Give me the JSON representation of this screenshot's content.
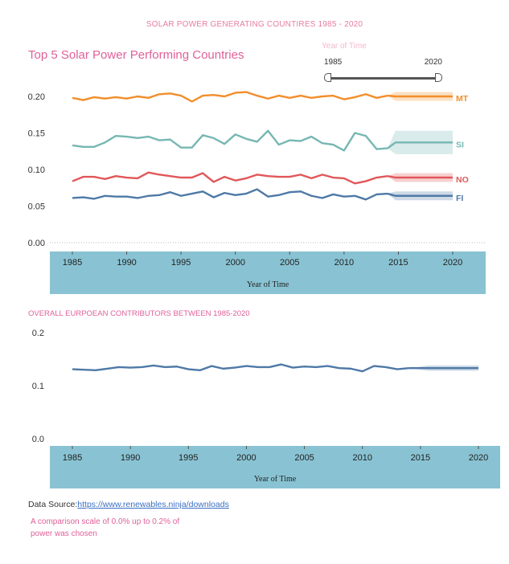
{
  "dashboard_title": "SOLAR POWER GENERATING COUNTIRES 1985 - 2020",
  "filter": {
    "label": "Year of Time",
    "min": "1985",
    "max": "2020"
  },
  "chart_data": [
    {
      "type": "line",
      "title": "Top 5 Solar Power Performing Countries",
      "xlabel": "Year of Time",
      "ylabel": "",
      "x": [
        1985,
        1986,
        1987,
        1988,
        1989,
        1990,
        1991,
        1992,
        1993,
        1994,
        1995,
        1996,
        1997,
        1998,
        1999,
        2000,
        2001,
        2002,
        2003,
        2004,
        2005,
        2006,
        2007,
        2008,
        2009,
        2010,
        2011,
        2012,
        2013,
        2014
      ],
      "xlim": [
        1985,
        2020
      ],
      "ylim": [
        0,
        0.2
      ],
      "yticks": [
        "0.00",
        "0.05",
        "0.10",
        "0.15",
        "0.20"
      ],
      "xticks": [
        "1985",
        "1990",
        "1995",
        "2000",
        "2005",
        "2010",
        "2015",
        "2020"
      ],
      "forecast_x": [
        2014,
        2020
      ],
      "series": [
        {
          "name": "MT",
          "color": "#f28e2b",
          "values": [
            0.198,
            0.195,
            0.199,
            0.197,
            0.199,
            0.197,
            0.2,
            0.198,
            0.203,
            0.204,
            0.201,
            0.193,
            0.201,
            0.202,
            0.2,
            0.205,
            0.206,
            0.201,
            0.197,
            0.201,
            0.198,
            0.201,
            0.198,
            0.2,
            0.201,
            0.196,
            0.199,
            0.203,
            0.198,
            0.201
          ],
          "forecast": 0.2,
          "band": [
            0.194,
            0.206
          ]
        },
        {
          "name": "SI",
          "color": "#76b7b2",
          "values": [
            0.133,
            0.131,
            0.131,
            0.137,
            0.146,
            0.145,
            0.143,
            0.145,
            0.14,
            0.141,
            0.13,
            0.13,
            0.147,
            0.143,
            0.135,
            0.148,
            0.142,
            0.138,
            0.153,
            0.134,
            0.14,
            0.139,
            0.145,
            0.136,
            0.134,
            0.126,
            0.15,
            0.146,
            0.128,
            0.129
          ],
          "forecast": 0.137,
          "band": [
            0.121,
            0.153
          ]
        },
        {
          "name": "NO",
          "color": "#e15759",
          "values": [
            0.084,
            0.09,
            0.09,
            0.087,
            0.091,
            0.089,
            0.088,
            0.096,
            0.093,
            0.091,
            0.089,
            0.089,
            0.095,
            0.083,
            0.09,
            0.085,
            0.088,
            0.093,
            0.091,
            0.09,
            0.09,
            0.093,
            0.088,
            0.093,
            0.089,
            0.088,
            0.081,
            0.084,
            0.089,
            0.091
          ],
          "forecast": 0.089,
          "band": [
            0.083,
            0.095
          ]
        },
        {
          "name": "FI",
          "color": "#4e79a7",
          "values": [
            0.061,
            0.062,
            0.06,
            0.064,
            0.063,
            0.063,
            0.061,
            0.064,
            0.065,
            0.069,
            0.064,
            0.067,
            0.07,
            0.062,
            0.068,
            0.065,
            0.067,
            0.073,
            0.063,
            0.065,
            0.069,
            0.07,
            0.064,
            0.061,
            0.066,
            0.063,
            0.064,
            0.059,
            0.066,
            0.067
          ],
          "forecast": 0.064,
          "band": [
            0.058,
            0.07
          ]
        }
      ]
    },
    {
      "type": "line",
      "title": "OVERALL EURPOEAN CONTRIBUTORS BETWEEN 1985-2020",
      "xlabel": "Year of Time",
      "ylabel": "",
      "x": [
        1985,
        1986,
        1987,
        1988,
        1989,
        1990,
        1991,
        1992,
        1993,
        1994,
        1995,
        1996,
        1997,
        1998,
        1999,
        2000,
        2001,
        2002,
        2003,
        2004,
        2005,
        2006,
        2007,
        2008,
        2009,
        2010,
        2011,
        2012,
        2013,
        2014
      ],
      "xlim": [
        1985,
        2020
      ],
      "ylim": [
        0,
        0.2
      ],
      "yticks": [
        "0.0",
        "0.1",
        "0.2"
      ],
      "xticks": [
        "1985",
        "1990",
        "1995",
        "2000",
        "2005",
        "2010",
        "2015",
        "2020"
      ],
      "forecast_x": [
        2015,
        2020
      ],
      "series": [
        {
          "color": "#4e79a7",
          "values": [
            0.131,
            0.13,
            0.129,
            0.132,
            0.135,
            0.134,
            0.135,
            0.138,
            0.135,
            0.136,
            0.131,
            0.129,
            0.137,
            0.132,
            0.134,
            0.137,
            0.135,
            0.135,
            0.14,
            0.134,
            0.136,
            0.135,
            0.137,
            0.133,
            0.132,
            0.127,
            0.137,
            0.135,
            0.131,
            0.133
          ],
          "forecast": 0.133,
          "band": [
            0.128,
            0.138
          ]
        }
      ]
    }
  ],
  "source": {
    "label": "Data Source:",
    "link": "https://www.renewables.ninja/downloads"
  },
  "note": "A comparison scale of 0.0% up to 0.2% of power was chosen"
}
